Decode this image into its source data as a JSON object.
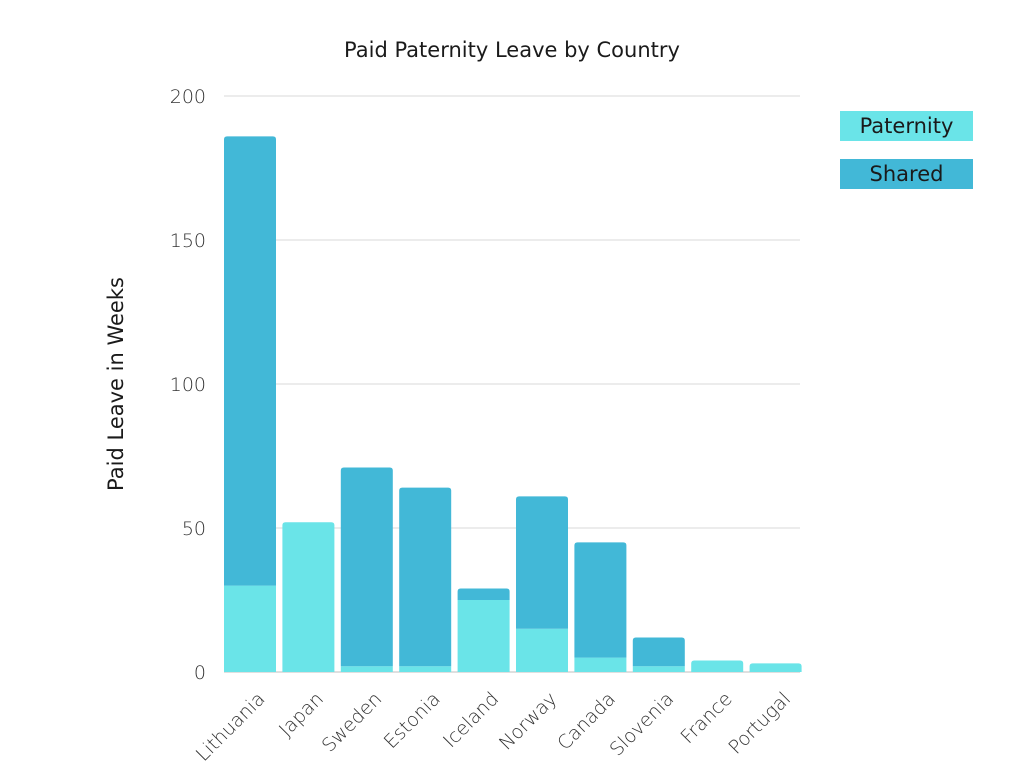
{
  "chart_data": {
    "type": "bar",
    "stacked": true,
    "title": "Paid Paternity Leave by Country",
    "xlabel": "",
    "ylabel": "Paid Leave in Weeks",
    "ylim": [
      0,
      200
    ],
    "yticks": [
      "0",
      "50",
      "100",
      "150",
      "200"
    ],
    "grid": true,
    "legend_position": "top-right",
    "categories": [
      "Lithuania",
      "Japan",
      "Sweden",
      "Estonia",
      "Iceland",
      "Norway",
      "Canada",
      "Slovenia",
      "France",
      "Portugal"
    ],
    "series": [
      {
        "name": "Paternity",
        "color": "#6ae4e8",
        "values": [
          30,
          52,
          2,
          2,
          25,
          15,
          5,
          2,
          4,
          3
        ]
      },
      {
        "name": "Shared",
        "color": "#42b8d7",
        "values": [
          156,
          0,
          69,
          62,
          4,
          46,
          40,
          10,
          0,
          0
        ]
      }
    ]
  },
  "legend": {
    "paternity_label": "Paternity",
    "shared_label": "Shared"
  }
}
